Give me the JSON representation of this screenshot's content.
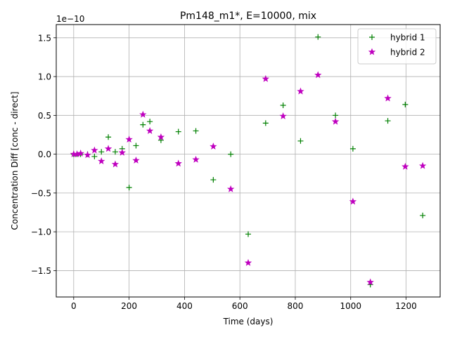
{
  "chart_data": {
    "type": "scatter",
    "title": "Pm148_m1*, E=10000, mix",
    "xlabel": "Time (days)",
    "ylabel": "Concentration Diff [conc - direct]",
    "y_scale_label": "1e−10",
    "xlim": [
      -63,
      1323
    ],
    "ylim": [
      -1.84,
      1.67
    ],
    "y_unit_multiplier": 1e-10,
    "xticks": [
      0,
      200,
      400,
      600,
      800,
      1000,
      1200
    ],
    "xtick_labels": [
      "0",
      "200",
      "400",
      "600",
      "800",
      "1000",
      "1200"
    ],
    "yticks": [
      -1.5,
      -1.0,
      -0.5,
      0.0,
      0.5,
      1.0,
      1.5
    ],
    "ytick_labels": [
      "−1.5",
      "−1.0",
      "−0.5",
      "0.0",
      "0.5",
      "1.0",
      "1.5"
    ],
    "grid": true,
    "legend_position": "top-right",
    "series": [
      {
        "name": "hybrid 1",
        "marker": "plus",
        "color": "#008000",
        "x": [
          0,
          12,
          25,
          50,
          75,
          100,
          125,
          150,
          175,
          200,
          225,
          250,
          275,
          315,
          378,
          441,
          504,
          567,
          630,
          693,
          756,
          819,
          882,
          945,
          1008,
          1071,
          1134,
          1197,
          1260
        ],
        "y": [
          0.0,
          0.0,
          0.0,
          0.0,
          -0.03,
          0.03,
          0.22,
          0.03,
          0.07,
          -0.43,
          0.11,
          0.38,
          0.42,
          0.18,
          0.29,
          0.3,
          -0.33,
          0.0,
          -1.03,
          0.4,
          0.63,
          0.17,
          1.51,
          0.5,
          0.07,
          -1.68,
          0.43,
          0.64,
          -0.79
        ]
      },
      {
        "name": "hybrid 2",
        "marker": "star",
        "color": "#bf00bf",
        "x": [
          0,
          12,
          25,
          50,
          75,
          100,
          125,
          150,
          175,
          200,
          225,
          250,
          275,
          315,
          378,
          441,
          504,
          567,
          630,
          693,
          756,
          819,
          882,
          945,
          1008,
          1071,
          1134,
          1197,
          1260
        ],
        "y": [
          0.0,
          0.0,
          0.01,
          -0.01,
          0.05,
          -0.09,
          0.07,
          -0.13,
          0.02,
          0.19,
          -0.08,
          0.51,
          0.3,
          0.22,
          -0.12,
          -0.07,
          0.1,
          -0.45,
          -1.4,
          0.97,
          0.49,
          0.81,
          1.02,
          0.42,
          -0.61,
          -1.65,
          0.72,
          -0.16,
          -0.15
        ]
      }
    ]
  }
}
